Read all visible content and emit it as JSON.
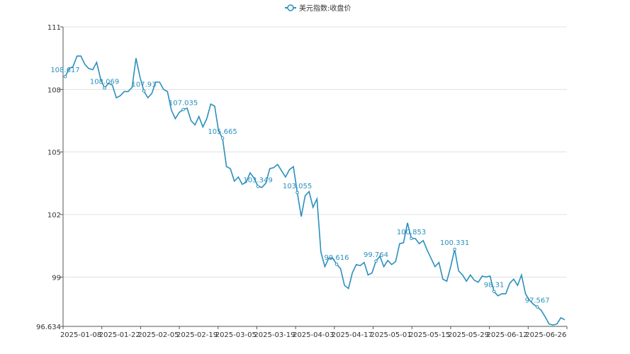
{
  "chart_data": {
    "type": "line",
    "legend": {
      "label": "美元指数:收盘价",
      "position": "top-center"
    },
    "color": "#2b8fbd",
    "ylim": [
      96.634,
      111
    ],
    "y_ticks": [
      "96.634",
      "99",
      "102",
      "105",
      "108",
      "111"
    ],
    "x_ticks": [
      "2025-01-08",
      "2025-01-22",
      "2025-02-05",
      "2025-02-19",
      "2025-03-05",
      "2025-03-19",
      "2025-04-03",
      "2025-04-17",
      "2025-05-01",
      "2025-05-15",
      "2025-05-29",
      "2025-06-12",
      "2025-06-26"
    ],
    "grid": "horizontal",
    "series": [
      {
        "name": "美元指数:收盘价",
        "values": [
          108.617,
          109.0,
          109.1,
          109.6,
          109.6,
          109.2,
          109.0,
          108.95,
          109.3,
          108.5,
          108.069,
          108.3,
          108.2,
          107.6,
          107.7,
          107.9,
          107.9,
          108.1,
          109.5,
          108.6,
          107.93,
          107.6,
          107.8,
          108.35,
          108.35,
          108.0,
          107.9,
          107.0,
          106.6,
          106.9,
          107.035,
          107.1,
          106.5,
          106.3,
          106.7,
          106.2,
          106.6,
          107.3,
          107.2,
          106.0,
          105.665,
          104.3,
          104.2,
          103.6,
          103.8,
          103.45,
          103.55,
          104.0,
          103.75,
          103.349,
          103.3,
          103.5,
          104.2,
          104.25,
          104.4,
          104.1,
          103.8,
          104.15,
          104.3,
          103.055,
          101.9,
          102.9,
          103.1,
          102.35,
          102.75,
          100.2,
          99.5,
          99.9,
          99.9,
          99.616,
          99.4,
          98.6,
          98.45,
          99.2,
          99.6,
          99.55,
          99.7,
          99.1,
          99.2,
          99.764,
          100.0,
          99.5,
          99.8,
          99.6,
          99.75,
          100.6,
          100.65,
          101.6,
          100.853,
          100.85,
          100.6,
          100.75,
          100.3,
          99.9,
          99.5,
          99.7,
          98.9,
          98.8,
          99.5,
          100.331,
          99.3,
          99.1,
          98.8,
          99.1,
          98.85,
          98.75,
          99.05,
          99.0,
          99.05,
          98.31,
          98.1,
          98.2,
          98.2,
          98.7,
          98.9,
          98.6,
          99.1,
          98.2,
          97.9,
          97.7,
          97.567,
          97.4,
          97.1,
          96.75,
          96.7,
          96.75,
          97.05,
          96.95
        ],
        "labels": [
          {
            "index": 0,
            "text": "108.617"
          },
          {
            "index": 10,
            "text": "108.069"
          },
          {
            "index": 20,
            "text": "107.93"
          },
          {
            "index": 30,
            "text": "107.035"
          },
          {
            "index": 40,
            "text": "105.665"
          },
          {
            "index": 49,
            "text": "103.349"
          },
          {
            "index": 59,
            "text": "103.055"
          },
          {
            "index": 69,
            "text": "99.616"
          },
          {
            "index": 79,
            "text": "99.764"
          },
          {
            "index": 88,
            "text": "100.853"
          },
          {
            "index": 99,
            "text": "100.331"
          },
          {
            "index": 109,
            "text": "98.31"
          },
          {
            "index": 120,
            "text": "97.567"
          }
        ]
      }
    ]
  }
}
